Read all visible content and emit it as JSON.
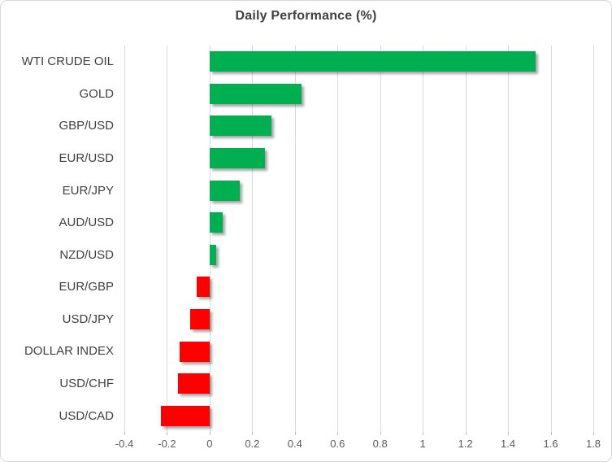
{
  "chart_data": {
    "type": "bar",
    "orientation": "horizontal",
    "title": "Daily Performance (%)",
    "categories": [
      "WTI CRUDE OIL",
      "GOLD",
      "GBP/USD",
      "EUR/USD",
      "EUR/JPY",
      "AUD/USD",
      "NZD/USD",
      "EUR/GBP",
      "USD/JPY",
      "DOLLAR INDEX",
      "USD/CHF",
      "USD/CAD"
    ],
    "values": [
      1.53,
      0.43,
      0.29,
      0.26,
      0.14,
      0.06,
      0.03,
      -0.06,
      -0.09,
      -0.14,
      -0.15,
      -0.23
    ],
    "xlim": [
      -0.4,
      1.8
    ],
    "x_tick_labels": [
      "-0.4",
      "-0.2",
      "0",
      "0.2",
      "0.4",
      "0.6",
      "0.8",
      "1",
      "1.2",
      "1.4",
      "1.6",
      "1.8"
    ],
    "x_tick_values": [
      -0.4,
      -0.2,
      0,
      0.2,
      0.4,
      0.6,
      0.8,
      1,
      1.2,
      1.4,
      1.6,
      1.8
    ],
    "grid": true,
    "legend": false,
    "xlabel": "",
    "ylabel": "",
    "colors": {
      "positive": "#00B050",
      "negative": "#FF0000",
      "gridline": "#D9D9D9",
      "title_text": "#404040",
      "category_text": "#404040",
      "tick_text": "#595959"
    }
  }
}
